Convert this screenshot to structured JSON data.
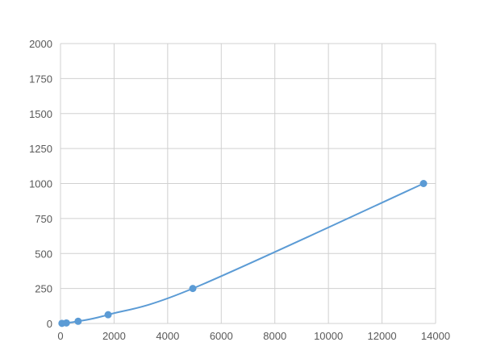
{
  "chart_data": {
    "type": "scatter",
    "title": "",
    "xlabel": "",
    "ylabel": "",
    "xlim": [
      0,
      14000
    ],
    "ylim": [
      0,
      2000
    ],
    "xticks": [
      0,
      2000,
      4000,
      6000,
      8000,
      10000,
      12000,
      14000
    ],
    "yticks": [
      0,
      250,
      500,
      750,
      1000,
      1250,
      1500,
      1750,
      2000
    ],
    "grid": true,
    "line_color": "#5b9bd5",
    "series": [
      {
        "x": [
          55,
          219,
          658,
          1778,
          4938,
          13550
        ],
        "y": [
          0.98,
          3.9,
          15.6,
          62.5,
          250,
          1000
        ]
      }
    ]
  }
}
